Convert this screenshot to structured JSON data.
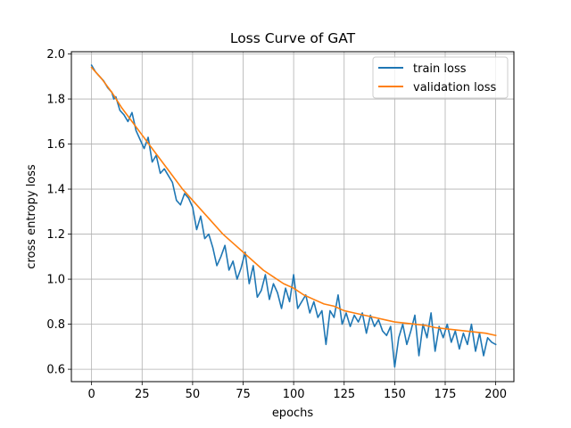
{
  "chart_data": {
    "type": "line",
    "title": "Loss Curve of GAT",
    "xlabel": "epochs",
    "ylabel": "cross entropy loss",
    "xlim": [
      -10,
      209
    ],
    "ylim": [
      0.545,
      2.01
    ],
    "xticks": [
      0,
      25,
      50,
      75,
      100,
      125,
      150,
      175,
      200
    ],
    "yticks": [
      0.6,
      0.8,
      1.0,
      1.2,
      1.4,
      1.6,
      1.8,
      2.0
    ],
    "xtick_labels": [
      "0",
      "25",
      "50",
      "75",
      "100",
      "125",
      "150",
      "175",
      "200"
    ],
    "ytick_labels": [
      "0.6",
      "0.8",
      "1.0",
      "1.2",
      "1.4",
      "1.6",
      "1.8",
      "2.0"
    ],
    "grid": true,
    "legend_position": "top-right",
    "series": [
      {
        "name": "train loss",
        "color": "#1f77b4",
        "x": [
          0,
          2,
          4,
          6,
          8,
          10,
          11,
          12,
          14,
          16,
          18,
          20,
          22,
          24,
          26,
          28,
          30,
          32,
          34,
          36,
          38,
          40,
          42,
          44,
          46,
          48,
          50,
          52,
          54,
          56,
          58,
          60,
          62,
          64,
          66,
          68,
          70,
          72,
          74,
          76,
          78,
          80,
          82,
          84,
          86,
          88,
          90,
          92,
          94,
          96,
          98,
          100,
          102,
          104,
          106,
          108,
          110,
          112,
          114,
          116,
          118,
          120,
          122,
          124,
          126,
          128,
          130,
          132,
          134,
          136,
          138,
          140,
          142,
          144,
          146,
          148,
          150,
          152,
          154,
          156,
          158,
          160,
          162,
          164,
          166,
          168,
          170,
          172,
          174,
          176,
          178,
          180,
          182,
          184,
          186,
          188,
          190,
          192,
          194,
          196,
          198,
          200
        ],
        "y": [
          1.95,
          1.92,
          1.9,
          1.88,
          1.85,
          1.83,
          1.8,
          1.81,
          1.75,
          1.73,
          1.7,
          1.74,
          1.66,
          1.62,
          1.58,
          1.63,
          1.52,
          1.55,
          1.47,
          1.49,
          1.46,
          1.43,
          1.35,
          1.33,
          1.38,
          1.36,
          1.32,
          1.22,
          1.28,
          1.18,
          1.2,
          1.14,
          1.06,
          1.1,
          1.15,
          1.04,
          1.08,
          1.0,
          1.05,
          1.12,
          0.98,
          1.06,
          0.92,
          0.95,
          1.02,
          0.91,
          0.98,
          0.94,
          0.87,
          0.96,
          0.9,
          1.02,
          0.87,
          0.9,
          0.93,
          0.85,
          0.9,
          0.83,
          0.86,
          0.71,
          0.86,
          0.83,
          0.93,
          0.8,
          0.85,
          0.79,
          0.84,
          0.81,
          0.85,
          0.76,
          0.84,
          0.79,
          0.82,
          0.77,
          0.75,
          0.79,
          0.61,
          0.74,
          0.8,
          0.71,
          0.77,
          0.84,
          0.66,
          0.8,
          0.74,
          0.85,
          0.68,
          0.79,
          0.74,
          0.8,
          0.72,
          0.77,
          0.69,
          0.76,
          0.71,
          0.8,
          0.68,
          0.76,
          0.66,
          0.74,
          0.72,
          0.71
        ],
        "line_width": 1.6
      },
      {
        "name": "validation loss",
        "color": "#ff7f0e",
        "x": [
          0,
          5,
          10,
          15,
          20,
          25,
          30,
          35,
          40,
          45,
          50,
          55,
          60,
          65,
          70,
          75,
          80,
          85,
          90,
          95,
          100,
          105,
          110,
          115,
          120,
          125,
          130,
          135,
          140,
          145,
          150,
          155,
          160,
          165,
          170,
          175,
          180,
          185,
          190,
          195,
          200
        ],
        "y": [
          1.94,
          1.89,
          1.83,
          1.76,
          1.7,
          1.64,
          1.58,
          1.52,
          1.46,
          1.4,
          1.35,
          1.3,
          1.25,
          1.2,
          1.16,
          1.12,
          1.08,
          1.04,
          1.01,
          0.98,
          0.96,
          0.93,
          0.91,
          0.89,
          0.88,
          0.86,
          0.85,
          0.84,
          0.83,
          0.82,
          0.81,
          0.805,
          0.8,
          0.795,
          0.785,
          0.78,
          0.775,
          0.77,
          0.765,
          0.76,
          0.75
        ],
        "line_width": 1.6
      }
    ]
  }
}
